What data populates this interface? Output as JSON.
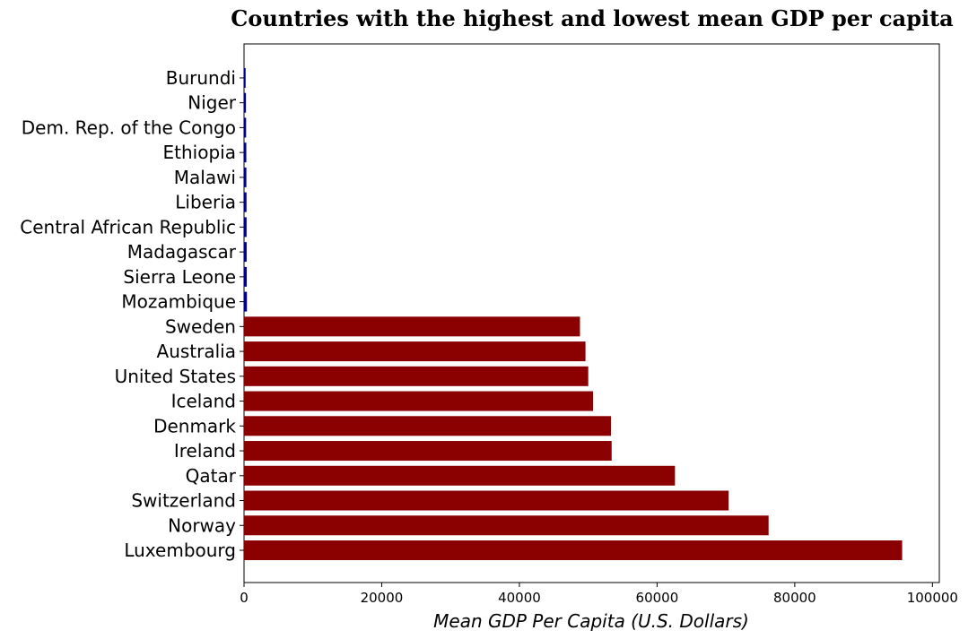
{
  "chart_data": {
    "type": "bar",
    "orientation": "horizontal",
    "title": "Countries with the highest and lowest mean GDP per capita",
    "xlabel": "Mean GDP Per Capita (U.S. Dollars)",
    "ylabel": "",
    "xlim": [
      0,
      101000
    ],
    "xticks": [
      0,
      20000,
      40000,
      60000,
      80000,
      100000
    ],
    "grid": false,
    "categories": [
      "Luxembourg",
      "Norway",
      "Switzerland",
      "Qatar",
      "Ireland",
      "Denmark",
      "Iceland",
      "United States",
      "Australia",
      "Sweden",
      "Mozambique",
      "Sierra Leone",
      "Madagascar",
      "Central African Republic",
      "Liberia",
      "Malawi",
      "Ethiopia",
      "Dem. Rep. of the Congo",
      "Niger",
      "Burundi"
    ],
    "values": [
      95600,
      76200,
      70400,
      62600,
      53400,
      53300,
      50700,
      50000,
      49600,
      48800,
      420,
      390,
      380,
      370,
      360,
      340,
      330,
      300,
      280,
      230
    ],
    "colors": [
      "#8b0000",
      "#8b0000",
      "#8b0000",
      "#8b0000",
      "#8b0000",
      "#8b0000",
      "#8b0000",
      "#8b0000",
      "#8b0000",
      "#8b0000",
      "#00008b",
      "#00008b",
      "#00008b",
      "#00008b",
      "#00008b",
      "#00008b",
      "#00008b",
      "#00008b",
      "#00008b",
      "#00008b"
    ]
  }
}
